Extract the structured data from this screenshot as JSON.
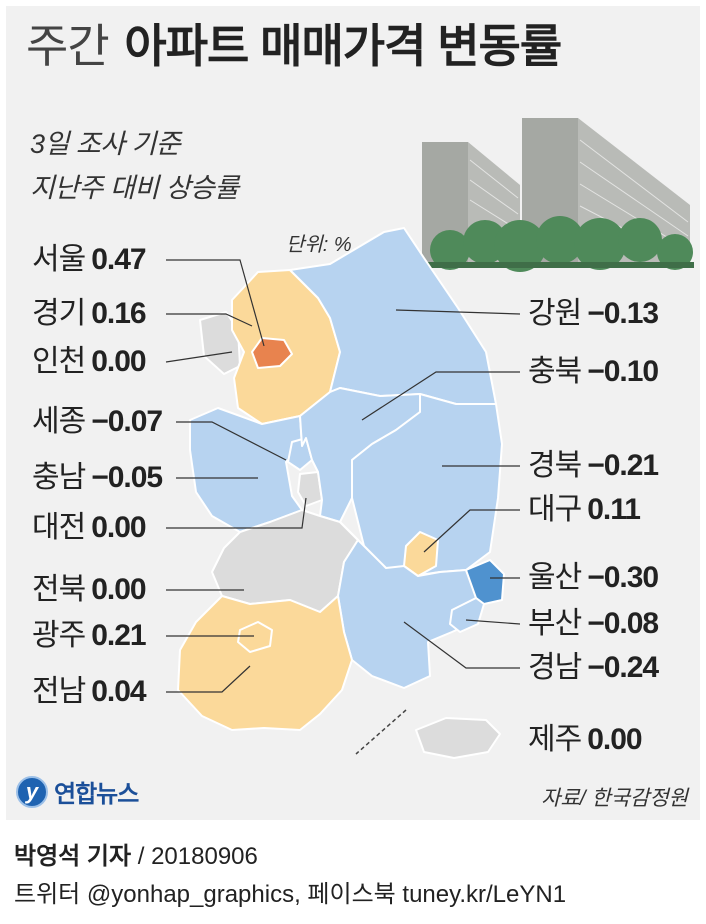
{
  "title": {
    "light": "주간",
    "bold": "아파트 매매가격 변동률"
  },
  "subtitle_lines": [
    "3일 조사 기준",
    "지난주 대비 상승률"
  ],
  "unit": "단위: %",
  "colors": {
    "rise_strong": "#e8834e",
    "rise": "#fbd99a",
    "flat": "#dcdcdc",
    "fall": "#b7d3f0",
    "fall_strong": "#4f92cf",
    "building": "#a5a8a3",
    "tree": "#4f8a5a"
  },
  "regions": [
    {
      "name": "서울",
      "value": "0.47",
      "level": "rise_strong"
    },
    {
      "name": "경기",
      "value": "0.16",
      "level": "rise"
    },
    {
      "name": "인천",
      "value": "0.00",
      "level": "flat"
    },
    {
      "name": "세종",
      "value": "−0.07",
      "level": "fall"
    },
    {
      "name": "충남",
      "value": "−0.05",
      "level": "fall"
    },
    {
      "name": "대전",
      "value": "0.00",
      "level": "flat"
    },
    {
      "name": "전북",
      "value": "0.00",
      "level": "flat"
    },
    {
      "name": "광주",
      "value": "0.21",
      "level": "rise"
    },
    {
      "name": "전남",
      "value": "0.04",
      "level": "rise"
    },
    {
      "name": "강원",
      "value": "−0.13",
      "level": "fall"
    },
    {
      "name": "충북",
      "value": "−0.10",
      "level": "fall"
    },
    {
      "name": "경북",
      "value": "−0.21",
      "level": "fall"
    },
    {
      "name": "대구",
      "value": "0.11",
      "level": "rise"
    },
    {
      "name": "울산",
      "value": "−0.30",
      "level": "fall_strong"
    },
    {
      "name": "부산",
      "value": "−0.08",
      "level": "fall"
    },
    {
      "name": "경남",
      "value": "−0.24",
      "level": "fall"
    },
    {
      "name": "제주",
      "value": "0.00",
      "level": "flat"
    }
  ],
  "logo": {
    "mark": "y",
    "text": "연합뉴스"
  },
  "source": "자료/ 한국감정원",
  "credit": {
    "reporter": "박영석 기자",
    "date": "/ 20180906",
    "social": "트위터 @yonhap_graphics, 페이스북 tuney.kr/LeYN1"
  }
}
